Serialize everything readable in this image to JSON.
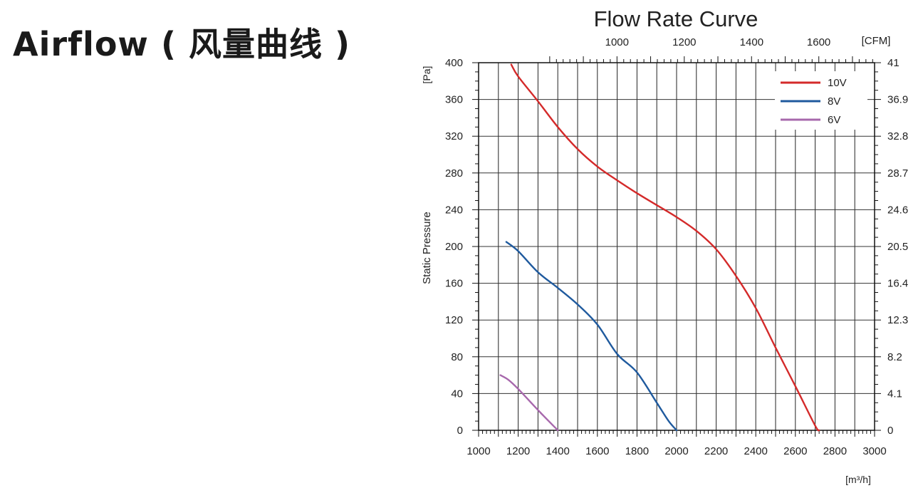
{
  "page": {
    "heading": "Airflow ( 风量曲线 )"
  },
  "chart_data": {
    "type": "line",
    "title": "Flow Rate Curve",
    "xlabel": "[m³/h]",
    "ylabel": "Static Pressure",
    "y_unit": "[Pa]",
    "x_top_unit": "[CFM]",
    "xlim": [
      1000,
      3000
    ],
    "ylim": [
      0,
      400
    ],
    "x_ticks": [
      1000,
      1200,
      1400,
      1600,
      1800,
      2000,
      2200,
      2400,
      2600,
      2800,
      3000
    ],
    "y_ticks": [
      0,
      40,
      80,
      120,
      160,
      200,
      240,
      280,
      320,
      360,
      400
    ],
    "x_top_ticks": [
      {
        "label": "1000",
        "x": 1699
      },
      {
        "label": "1200",
        "x": 2039
      },
      {
        "label": "1400",
        "x": 2379
      },
      {
        "label": "1600",
        "x": 2718
      }
    ],
    "y_right_ticks": [
      {
        "label": "0",
        "y": 0
      },
      {
        "label": "4.1",
        "y": 40
      },
      {
        "label": "8.2",
        "y": 80
      },
      {
        "label": "12.3",
        "y": 120
      },
      {
        "label": "16.4",
        "y": 160
      },
      {
        "label": "20.5",
        "y": 200
      },
      {
        "label": "24.6",
        "y": 240
      },
      {
        "label": "28.7",
        "y": 280
      },
      {
        "label": "32.8",
        "y": 320
      },
      {
        "label": "36.9",
        "y": 360
      },
      {
        "label": "41",
        "y": 400
      }
    ],
    "grid": true,
    "legend_position": "top-right",
    "series": [
      {
        "name": "10V",
        "color": "#d42a2a",
        "points": [
          [
            1165,
            398
          ],
          [
            1200,
            385
          ],
          [
            1300,
            358
          ],
          [
            1400,
            330
          ],
          [
            1500,
            306
          ],
          [
            1600,
            287
          ],
          [
            1700,
            272
          ],
          [
            1800,
            258
          ],
          [
            1900,
            245
          ],
          [
            2000,
            232
          ],
          [
            2100,
            217
          ],
          [
            2200,
            197
          ],
          [
            2300,
            168
          ],
          [
            2400,
            133
          ],
          [
            2500,
            90
          ],
          [
            2600,
            48
          ],
          [
            2700,
            5
          ],
          [
            2720,
            0
          ]
        ]
      },
      {
        "name": "8V",
        "color": "#1f5a9e",
        "points": [
          [
            1140,
            205
          ],
          [
            1200,
            195
          ],
          [
            1300,
            172
          ],
          [
            1400,
            155
          ],
          [
            1500,
            137
          ],
          [
            1600,
            115
          ],
          [
            1700,
            83
          ],
          [
            1800,
            63
          ],
          [
            1900,
            30
          ],
          [
            1960,
            10
          ],
          [
            2000,
            0
          ]
        ]
      },
      {
        "name": "6V",
        "color": "#a768ac",
        "points": [
          [
            1110,
            60
          ],
          [
            1150,
            55
          ],
          [
            1200,
            45
          ],
          [
            1300,
            22
          ],
          [
            1400,
            0
          ]
        ]
      }
    ]
  }
}
